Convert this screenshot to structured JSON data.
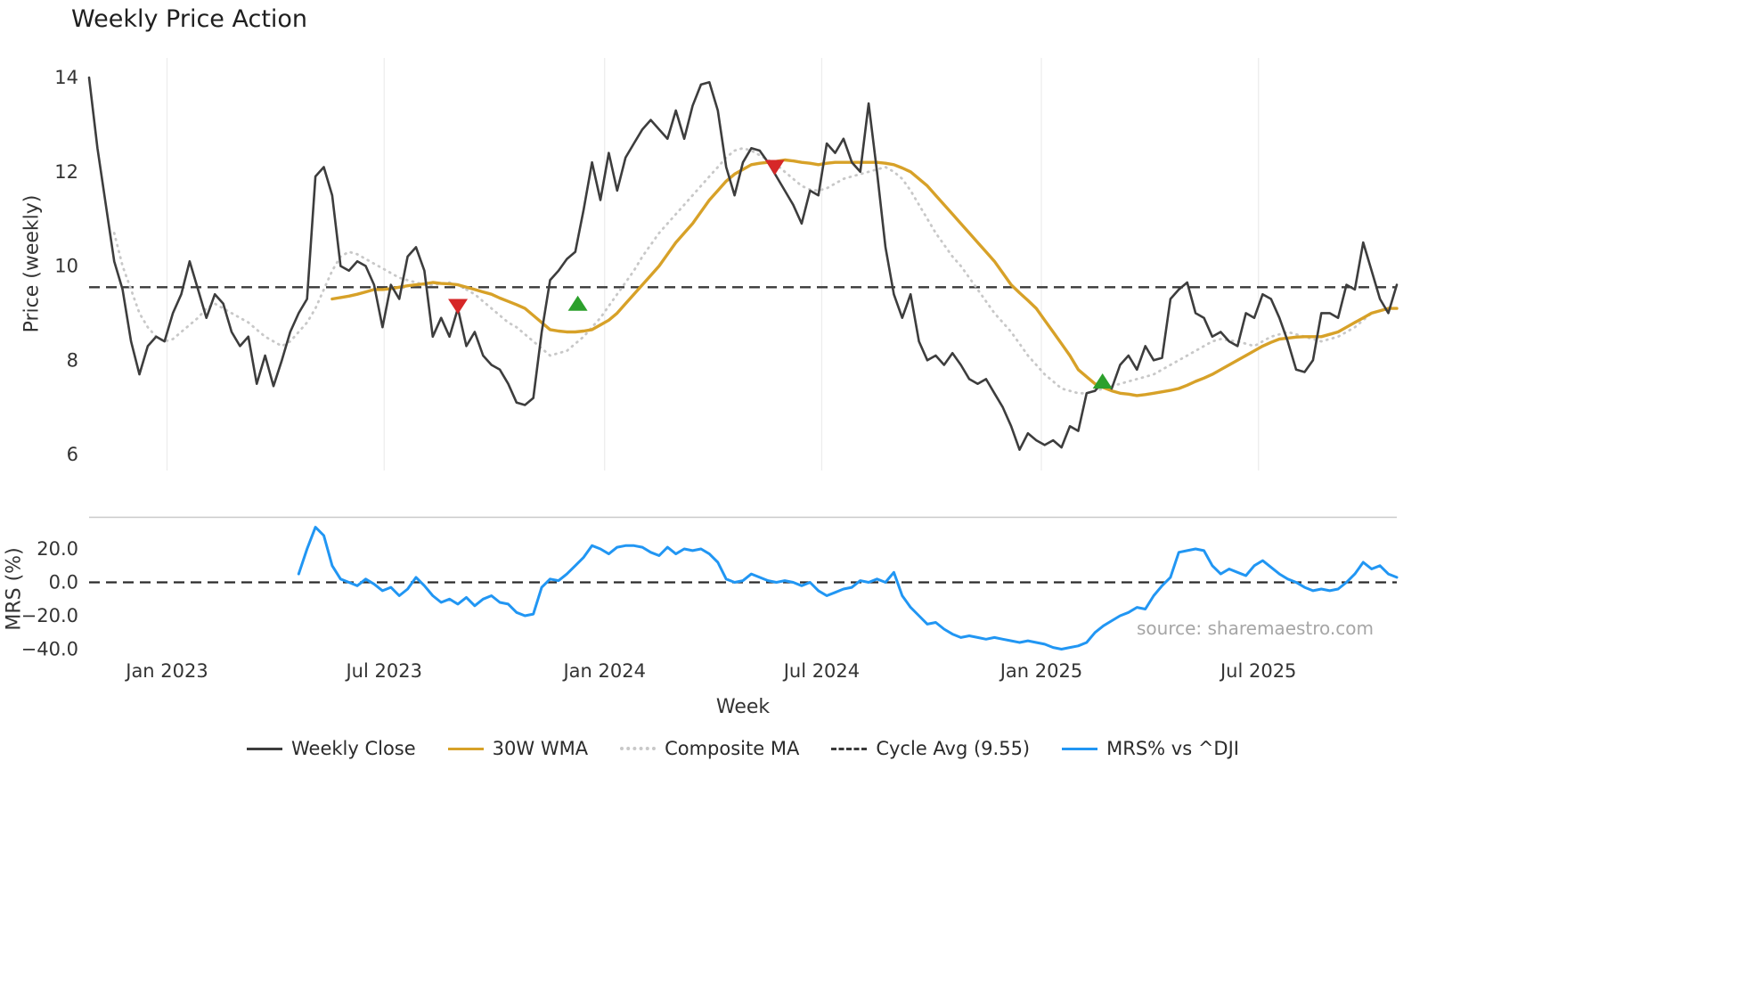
{
  "title": "Weekly Price Action",
  "xlabel": "Week",
  "source": "source: sharemaestro.com",
  "price_panel": {
    "ylabel": "Price (weekly)",
    "yticks": [
      14,
      12,
      10,
      8,
      6
    ]
  },
  "mrs_panel": {
    "ylabel": "MRS (%)",
    "yticks": [
      {
        "v": 20,
        "label": "20.0"
      },
      {
        "v": 0,
        "label": "0.0"
      },
      {
        "v": -20,
        "label": "−20.0"
      },
      {
        "v": -40,
        "label": "−40.0"
      }
    ]
  },
  "legend": [
    {
      "label": "Weekly Close",
      "color": "#3d3d3d",
      "style": "solid"
    },
    {
      "label": "30W WMA",
      "color": "#d7a128",
      "style": "solid"
    },
    {
      "label": "Composite MA",
      "color": "#c8c8c8",
      "style": "dotted"
    },
    {
      "label": "Cycle Avg (9.55)",
      "color": "#3a3a3a",
      "style": "dashed"
    },
    {
      "label": "MRS% vs ^DJI",
      "color": "#2196f3",
      "style": "solid"
    }
  ],
  "chart_data": {
    "type": "line",
    "x_unit": "week_index",
    "x_ticks": [
      {
        "week": 9.3,
        "label": "Jan 2023"
      },
      {
        "week": 35.2,
        "label": "Jul 2023"
      },
      {
        "week": 61.5,
        "label": "Jan 2024"
      },
      {
        "week": 87.4,
        "label": "Jul 2024"
      },
      {
        "week": 113.6,
        "label": "Jan 2025"
      },
      {
        "week": 139.5,
        "label": "Jul 2025"
      }
    ],
    "price_ylim": [
      5.6,
      14.4
    ],
    "mrs_ylim": [
      -43,
      39
    ],
    "cycle_avg": 9.55,
    "mrs_zero_line": 0,
    "marker_colors": {
      "buy": "#2ca02c",
      "sell": "#d62728"
    },
    "markers": [
      {
        "week": 44.0,
        "price": 9.15,
        "type": "sell"
      },
      {
        "week": 58.3,
        "price": 9.2,
        "type": "buy"
      },
      {
        "week": 81.8,
        "price": 12.1,
        "type": "sell"
      },
      {
        "week": 120.9,
        "price": 7.55,
        "type": "buy"
      }
    ],
    "series": [
      {
        "name": "Composite MA",
        "color": "#c8c8c8",
        "panel": "price",
        "dash": "1 6",
        "width": 2.8,
        "start_week": 3,
        "values": [
          10.7,
          10.0,
          9.5,
          9.0,
          8.7,
          8.5,
          8.4,
          8.45,
          8.6,
          8.75,
          8.9,
          9.1,
          9.2,
          9.1,
          9.0,
          8.9,
          8.8,
          8.65,
          8.5,
          8.4,
          8.3,
          8.4,
          8.6,
          8.8,
          9.1,
          9.5,
          9.9,
          10.2,
          10.3,
          10.25,
          10.15,
          10.05,
          9.95,
          9.85,
          9.75,
          9.7,
          9.65,
          9.6,
          9.6,
          9.62,
          9.65,
          9.6,
          9.5,
          9.4,
          9.25,
          9.1,
          8.95,
          8.8,
          8.7,
          8.55,
          8.4,
          8.25,
          8.1,
          8.15,
          8.2,
          8.35,
          8.5,
          8.7,
          8.9,
          9.15,
          9.4,
          9.65,
          9.9,
          10.2,
          10.45,
          10.7,
          10.9,
          11.1,
          11.3,
          11.5,
          11.7,
          11.9,
          12.1,
          12.3,
          12.45,
          12.5,
          12.45,
          12.35,
          12.25,
          12.15,
          12.0,
          11.85,
          11.7,
          11.62,
          11.6,
          11.65,
          11.75,
          11.85,
          11.9,
          11.95,
          12.0,
          12.05,
          12.1,
          12.0,
          11.85,
          11.6,
          11.3,
          11.0,
          10.7,
          10.45,
          10.2,
          10.0,
          9.75,
          9.5,
          9.25,
          9.0,
          8.8,
          8.6,
          8.35,
          8.1,
          7.9,
          7.7,
          7.55,
          7.4,
          7.35,
          7.3,
          7.3,
          7.35,
          7.4,
          7.45,
          7.5,
          7.55,
          7.6,
          7.65,
          7.7,
          7.8,
          7.9,
          8.0,
          8.1,
          8.2,
          8.3,
          8.4,
          8.45,
          8.42,
          8.4,
          8.35,
          8.3,
          8.4,
          8.5,
          8.55,
          8.6,
          8.55,
          8.5,
          8.45,
          8.4,
          8.45,
          8.5,
          8.6,
          8.7,
          8.85,
          9.0,
          9.05,
          9.1,
          9.1
        ]
      },
      {
        "name": "30W WMA",
        "color": "#d7a128",
        "panel": "price",
        "width": 3.4,
        "start_week": 29,
        "values": [
          9.3,
          9.33,
          9.36,
          9.4,
          9.45,
          9.5,
          9.5,
          9.52,
          9.55,
          9.58,
          9.6,
          9.62,
          9.65,
          9.63,
          9.62,
          9.6,
          9.55,
          9.5,
          9.45,
          9.4,
          9.32,
          9.25,
          9.18,
          9.1,
          8.95,
          8.8,
          8.65,
          8.62,
          8.6,
          8.6,
          8.62,
          8.65,
          8.75,
          8.85,
          9.0,
          9.2,
          9.4,
          9.6,
          9.8,
          10.0,
          10.25,
          10.5,
          10.7,
          10.9,
          11.15,
          11.4,
          11.6,
          11.8,
          11.95,
          12.05,
          12.15,
          12.18,
          12.2,
          12.22,
          12.25,
          12.23,
          12.2,
          12.18,
          12.15,
          12.18,
          12.2,
          12.2,
          12.2,
          12.2,
          12.2,
          12.2,
          12.18,
          12.15,
          12.08,
          12.0,
          11.85,
          11.7,
          11.5,
          11.3,
          11.1,
          10.9,
          10.7,
          10.5,
          10.3,
          10.1,
          9.85,
          9.6,
          9.43,
          9.27,
          9.1,
          8.85,
          8.6,
          8.35,
          8.1,
          7.8,
          7.65,
          7.5,
          7.42,
          7.35,
          7.3,
          7.28,
          7.25,
          7.27,
          7.3,
          7.33,
          7.36,
          7.4,
          7.47,
          7.55,
          7.62,
          7.7,
          7.8,
          7.9,
          8.0,
          8.1,
          8.2,
          8.3,
          8.38,
          8.45,
          8.47,
          8.49,
          8.5,
          8.5,
          8.5,
          8.55,
          8.6,
          8.7,
          8.8,
          8.9,
          9.0,
          9.05,
          9.1,
          9.1
        ]
      },
      {
        "name": "Weekly Close",
        "color": "#3d3d3d",
        "panel": "price",
        "width": 2.6,
        "start_week": 0,
        "values": [
          14.0,
          12.5,
          11.3,
          10.1,
          9.5,
          8.4,
          7.7,
          8.3,
          8.5,
          8.4,
          9.0,
          9.4,
          10.1,
          9.5,
          8.9,
          9.4,
          9.2,
          8.6,
          8.3,
          8.5,
          7.5,
          8.1,
          7.45,
          8.0,
          8.6,
          9.0,
          9.3,
          11.9,
          12.1,
          11.5,
          10.0,
          9.9,
          10.1,
          10.0,
          9.6,
          8.7,
          9.6,
          9.3,
          10.2,
          10.4,
          9.9,
          8.5,
          8.9,
          8.5,
          9.1,
          8.3,
          8.6,
          8.1,
          7.9,
          7.8,
          7.5,
          7.1,
          7.05,
          7.2,
          8.6,
          9.7,
          9.9,
          10.15,
          10.3,
          11.2,
          12.2,
          11.4,
          12.4,
          11.6,
          12.3,
          12.6,
          12.9,
          13.1,
          12.9,
          12.7,
          13.3,
          12.7,
          13.4,
          13.85,
          13.9,
          13.3,
          12.1,
          11.5,
          12.2,
          12.5,
          12.45,
          12.2,
          11.9,
          11.6,
          11.3,
          10.9,
          11.6,
          11.5,
          12.6,
          12.4,
          12.7,
          12.2,
          12.0,
          13.45,
          12.0,
          10.4,
          9.4,
          8.9,
          9.4,
          8.4,
          8.0,
          8.1,
          7.9,
          8.15,
          7.9,
          7.6,
          7.5,
          7.6,
          7.3,
          7.0,
          6.6,
          6.1,
          6.45,
          6.3,
          6.2,
          6.3,
          6.15,
          6.6,
          6.5,
          7.3,
          7.35,
          7.55,
          7.4,
          7.9,
          8.1,
          7.8,
          8.3,
          8.0,
          8.05,
          9.3,
          9.5,
          9.65,
          9.0,
          8.9,
          8.5,
          8.6,
          8.4,
          8.3,
          9.0,
          8.9,
          9.4,
          9.3,
          8.9,
          8.4,
          7.8,
          7.75,
          8.0,
          9.0,
          9.0,
          8.9,
          9.6,
          9.5,
          10.5,
          9.9,
          9.3,
          9.0,
          9.6
        ]
      },
      {
        "name": "MRS% vs ^DJI",
        "color": "#2196f3",
        "panel": "mrs",
        "width": 3.0,
        "start_week": 25,
        "values": [
          5,
          20,
          33,
          28,
          10,
          2,
          0,
          -2,
          2,
          -1,
          -5,
          -3,
          -8,
          -4,
          3,
          -2,
          -8,
          -12,
          -10,
          -13,
          -9,
          -14,
          -10,
          -8,
          -12,
          -13,
          -18,
          -20,
          -19,
          -3,
          2,
          1,
          5,
          10,
          15,
          22,
          20,
          17,
          21,
          22,
          22,
          21,
          18,
          16,
          21,
          17,
          20,
          19,
          20,
          17,
          12,
          2,
          0,
          1,
          5,
          3,
          1,
          0,
          1,
          0,
          -2,
          0,
          -5,
          -8,
          -6,
          -4,
          -3,
          1,
          0,
          2,
          0,
          6,
          -8,
          -15,
          -20,
          -25,
          -24,
          -28,
          -31,
          -33,
          -32,
          -33,
          -34,
          -33,
          -34,
          -35,
          -36,
          -35,
          -36,
          -37,
          -39,
          -40,
          -39,
          -38,
          -36,
          -30,
          -26,
          -23,
          -20,
          -18,
          -15,
          -16,
          -8,
          -2,
          3,
          18,
          19,
          20,
          19,
          10,
          5,
          8,
          6,
          4,
          10,
          13,
          9,
          5,
          2,
          0,
          -3,
          -5,
          -4,
          -5,
          -4,
          0,
          5,
          12,
          8,
          10,
          5,
          3
        ]
      }
    ]
  }
}
